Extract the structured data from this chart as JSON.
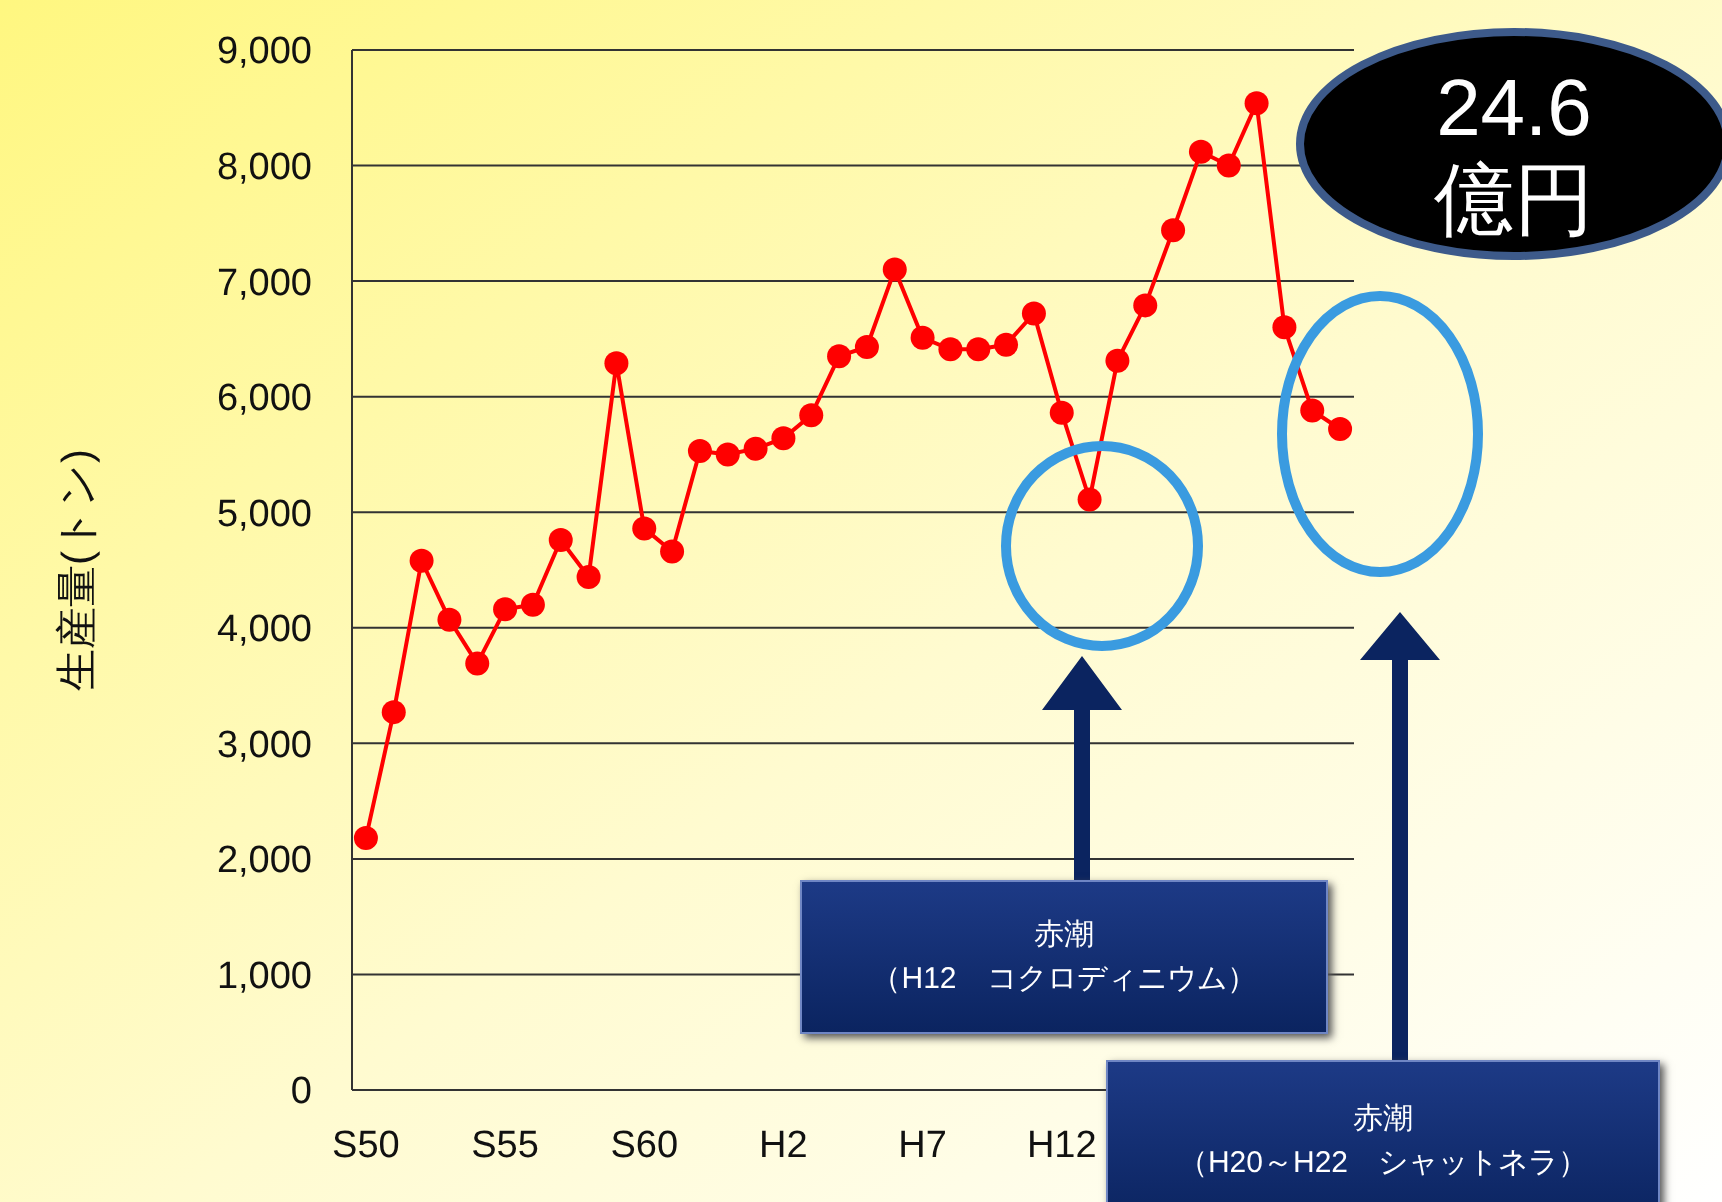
{
  "chart_data": {
    "type": "line",
    "ylabel": "生産量(トン)",
    "categories": [
      "S50",
      null,
      null,
      null,
      null,
      "S55",
      null,
      null,
      null,
      null,
      "S60",
      null,
      null,
      null,
      null,
      "H2",
      null,
      null,
      null,
      null,
      "H7",
      null,
      null,
      null,
      null,
      "H12",
      null,
      null,
      null,
      null,
      null,
      null,
      null,
      null,
      null,
      null
    ],
    "series": [
      {
        "color": "#ff0000",
        "values": [
          2180,
          3270,
          4580,
          4070,
          3690,
          4160,
          4200,
          4760,
          4440,
          6290,
          4860,
          4660,
          5530,
          5500,
          5550,
          5640,
          5840,
          6350,
          6430,
          7100,
          6510,
          6410,
          6410,
          6450,
          6720,
          5860,
          5110,
          6310,
          6790,
          7440,
          8120,
          8000,
          8540,
          6600,
          5880,
          5720
        ]
      }
    ],
    "ylim": [
      0,
      9000
    ],
    "yticks": [
      {
        "value": 0,
        "label": "0"
      },
      {
        "value": 1000,
        "label": "1,000"
      },
      {
        "value": 2000,
        "label": "2,000"
      },
      {
        "value": 3000,
        "label": "3,000"
      },
      {
        "value": 4000,
        "label": "4,000"
      },
      {
        "value": 5000,
        "label": "5,000"
      },
      {
        "value": 6000,
        "label": "6,000"
      },
      {
        "value": 7000,
        "label": "7,000"
      },
      {
        "value": 8000,
        "label": "8,000"
      },
      {
        "value": 9000,
        "label": "9,000"
      }
    ],
    "grid": "y",
    "marker": "circle",
    "annotations": [
      "24.6\n億円",
      "赤潮",
      "（H12　コクロディニウム）",
      "赤潮",
      "（H20～H22　シャットネラ）"
    ]
  }
}
